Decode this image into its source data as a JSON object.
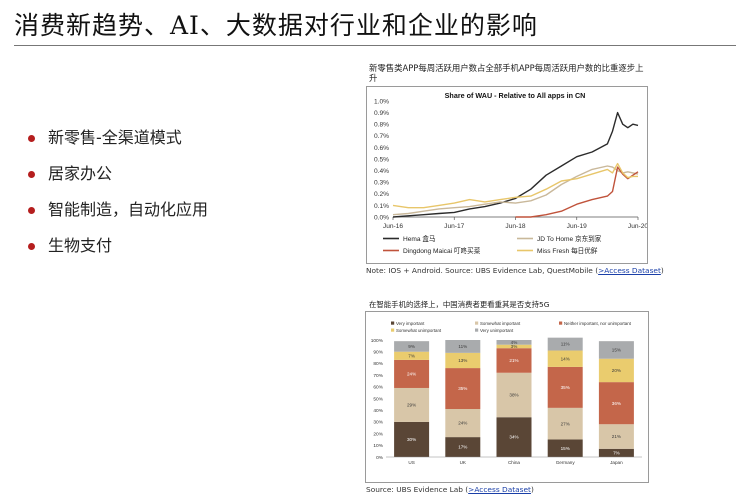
{
  "slide": {
    "title": "消费新趋势、AI、大数据对行业和企业的影响",
    "bullets": [
      "新零售-全渠道模式",
      "居家办公",
      "智能制造，自动化应用",
      "生物支付"
    ]
  },
  "chart1": {
    "caption": "新零售类APP每周活跃用户数占全部手机APP每周活跃用户数的比重逐步上升",
    "note": "Note: IOS + Android. Source: UBS Evidence Lab, QuestMobile (",
    "note_link": ">Access Dataset",
    "note_end": ")"
  },
  "chart2": {
    "caption": "在智能手机的选择上，中国消费者更看重其是否支持5G",
    "note": "Source: UBS Evidence Lab  (",
    "note_link": ">Access Dataset",
    "note_end": ")"
  },
  "chart_data": [
    {
      "type": "line",
      "title": "Share of WAU - Relative to All apps in CN",
      "xlabel": "",
      "ylabel": "",
      "x_ticks": [
        "Jun-16",
        "Jun-17",
        "Jun-18",
        "Jun-19",
        "Jun-20"
      ],
      "y_ticks": [
        "0.0%",
        "0.1%",
        "0.2%",
        "0.3%",
        "0.4%",
        "0.5%",
        "0.6%",
        "0.7%",
        "0.8%",
        "0.9%",
        "1.0%"
      ],
      "xlim": [
        "2016-06",
        "2020-06"
      ],
      "ylim": [
        0,
        1.0
      ],
      "y_unit": "%",
      "grid": false,
      "legend_position": "bottom",
      "series": [
        {
          "name": "Hema 盒马",
          "color": "#2b2b2b",
          "x": [
            "2016-06",
            "2016-09",
            "2016-12",
            "2017-03",
            "2017-06",
            "2017-09",
            "2017-12",
            "2018-03",
            "2018-06",
            "2018-09",
            "2018-12",
            "2019-03",
            "2019-06",
            "2019-09",
            "2019-12",
            "2020-01",
            "2020-02",
            "2020-03",
            "2020-04",
            "2020-05",
            "2020-06"
          ],
          "y": [
            0.0,
            0.01,
            0.02,
            0.03,
            0.04,
            0.07,
            0.09,
            0.12,
            0.16,
            0.24,
            0.36,
            0.44,
            0.52,
            0.56,
            0.63,
            0.74,
            0.9,
            0.8,
            0.77,
            0.8,
            0.79
          ]
        },
        {
          "name": "JD To Home 京东到家",
          "color": "#c9b89a",
          "x": [
            "2016-06",
            "2016-09",
            "2016-12",
            "2017-03",
            "2017-06",
            "2017-09",
            "2017-12",
            "2018-03",
            "2018-06",
            "2018-09",
            "2018-12",
            "2019-03",
            "2019-06",
            "2019-09",
            "2019-12",
            "2020-01",
            "2020-02",
            "2020-03",
            "2020-04",
            "2020-05",
            "2020-06"
          ],
          "y": [
            0.02,
            0.03,
            0.05,
            0.07,
            0.08,
            0.09,
            0.11,
            0.13,
            0.12,
            0.14,
            0.19,
            0.28,
            0.35,
            0.41,
            0.44,
            0.43,
            0.4,
            0.38,
            0.39,
            0.38,
            0.37
          ]
        },
        {
          "name": "Dingdong Maicai 叮咚买菜",
          "color": "#c0533b",
          "x": [
            "2018-06",
            "2018-09",
            "2018-12",
            "2019-03",
            "2019-06",
            "2019-09",
            "2019-12",
            "2020-01",
            "2020-02",
            "2020-03",
            "2020-04",
            "2020-05",
            "2020-06"
          ],
          "y": [
            0.0,
            0.0,
            0.02,
            0.05,
            0.11,
            0.15,
            0.18,
            0.22,
            0.43,
            0.37,
            0.33,
            0.36,
            0.39
          ]
        },
        {
          "name": "Miss Fresh 每日优鲜",
          "color": "#e8c66a",
          "x": [
            "2016-06",
            "2016-09",
            "2016-12",
            "2017-03",
            "2017-06",
            "2017-09",
            "2017-12",
            "2018-03",
            "2018-06",
            "2018-09",
            "2018-12",
            "2019-03",
            "2019-06",
            "2019-09",
            "2019-12",
            "2020-01",
            "2020-02",
            "2020-03",
            "2020-04",
            "2020-05",
            "2020-06"
          ],
          "y": [
            0.1,
            0.08,
            0.08,
            0.1,
            0.12,
            0.15,
            0.13,
            0.15,
            0.17,
            0.18,
            0.24,
            0.31,
            0.33,
            0.37,
            0.41,
            0.38,
            0.46,
            0.38,
            0.34,
            0.35,
            0.35
          ]
        }
      ]
    },
    {
      "type": "bar",
      "stacked": true,
      "title": "",
      "categories": [
        "US",
        "UK",
        "China",
        "Germany",
        "Japan"
      ],
      "y_ticks": [
        "0%",
        "10%",
        "20%",
        "30%",
        "40%",
        "50%",
        "60%",
        "70%",
        "80%",
        "90%",
        "100%"
      ],
      "ylim": [
        0,
        100
      ],
      "legend_position": "top",
      "series": [
        {
          "name": "Very important",
          "color": "#5a4636",
          "values": [
            30,
            17,
            34,
            15,
            7
          ]
        },
        {
          "name": "Somewhat important",
          "color": "#d8c6a8",
          "values": [
            29,
            24,
            38,
            27,
            21
          ]
        },
        {
          "name": "Neither important, nor unimportant",
          "color": "#c4664a",
          "values": [
            24,
            35,
            21,
            35,
            36
          ]
        },
        {
          "name": "Somewhat unimportant",
          "color": "#eacc6e",
          "values": [
            7,
            13,
            3,
            14,
            20
          ]
        },
        {
          "name": "Very unimportant",
          "color": "#a9abad",
          "values": [
            9,
            11,
            4,
            11,
            15
          ]
        }
      ]
    }
  ]
}
